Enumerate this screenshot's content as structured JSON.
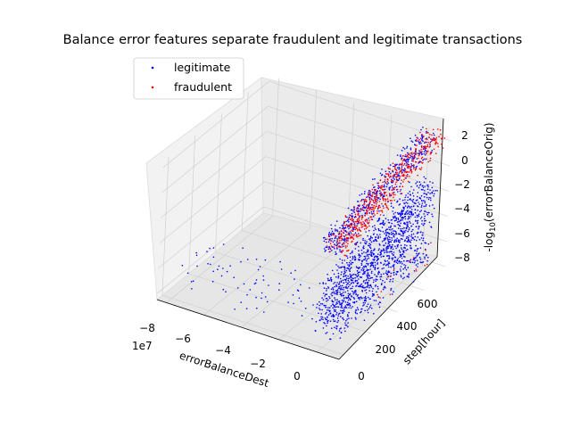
{
  "chart_data": {
    "type": "scatter",
    "title": "Balance error features separate fraudulent and legitimate transactions",
    "projection": "3d",
    "axes": {
      "x": {
        "label": "errorBalanceDest",
        "ticks": [
          "−8",
          "−6",
          "−4",
          "−2",
          "0"
        ],
        "offset_text": "1e7",
        "range": [
          -8.5,
          1.2
        ]
      },
      "y": {
        "label": "step[hour]",
        "ticks": [
          "0",
          "200",
          "400",
          "600"
        ],
        "range": [
          -40,
          760
        ]
      },
      "z": {
        "label_prefix": "-log",
        "label_sub": "10",
        "label_suffix": "(errorBalanceOrig)",
        "ticks": [
          "−8",
          "−6",
          "−4",
          "−2",
          "0",
          "2"
        ],
        "range": [
          -8.5,
          2.5
        ]
      }
    },
    "grid": true,
    "legend_position": "upper-left",
    "series": [
      {
        "name": "legitimate",
        "color": "#0000ff",
        "description": "dense cluster at errorBalanceDest near 0 spanning all steps with z from -8 to -2, plus a diagonal band at z around 2 rising with step, and sparse points along errorBalanceDest between -8e7 and 0"
      },
      {
        "name": "fraudulent",
        "color": "#ff0000",
        "description": "diagonal band at z around 0 to 2 near errorBalanceDest 0 spanning all steps"
      }
    ]
  }
}
